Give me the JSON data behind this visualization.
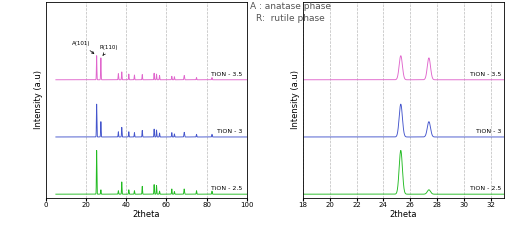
{
  "title_text": "A : anatase phase\nR:  rutile phase",
  "xlabel": "2theta",
  "ylabel": "Intensity (a.u)",
  "colors": {
    "TiON35": "#e066cc",
    "TiON3": "#4455cc",
    "TiON25": "#22bb22"
  },
  "offsets": {
    "TiON35": 1.7,
    "TiON3": 0.85,
    "TiON25": 0.0
  },
  "xlim_left": [
    5,
    100
  ],
  "xlim_right": [
    18,
    33
  ],
  "grid_color": "#bbbbbb",
  "bg_color": "#ffffff"
}
